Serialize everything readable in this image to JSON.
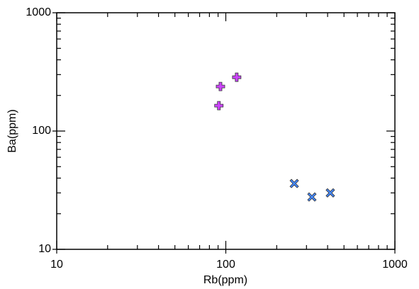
{
  "chart_data": {
    "type": "scatter",
    "x_label": "Rb(ppm)",
    "y_label": "Ba(ppm)",
    "xscale": "log",
    "yscale": "log",
    "xlim": [
      10,
      1000
    ],
    "ylim": [
      10,
      1000
    ],
    "xticks": [
      10,
      100,
      1000
    ],
    "yticks": [
      10,
      100,
      1000
    ],
    "series": [
      {
        "color": "#cc44ff",
        "marker": "plus",
        "x": [
          93,
          91,
          116
        ],
        "values": [
          238,
          164,
          285
        ]
      },
      {
        "color": "#4488ff",
        "marker": "x",
        "x": [
          254,
          323,
          415
        ],
        "values": [
          36,
          27.7,
          30
        ]
      }
    ]
  }
}
